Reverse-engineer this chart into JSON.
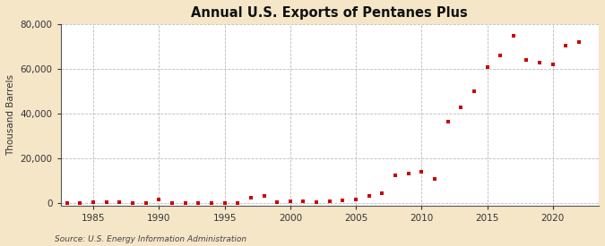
{
  "title": "Annual U.S. Exports of Pentanes Plus",
  "ylabel": "Thousand Barrels",
  "source": "Source: U.S. Energy Information Administration",
  "background_color": "#f5e6c8",
  "plot_bg_color": "#ffffff",
  "marker_color": "#cc0000",
  "marker": "s",
  "marker_size": 3.5,
  "xlim": [
    1982.5,
    2023.5
  ],
  "ylim": [
    -1000,
    80000
  ],
  "yticks": [
    0,
    20000,
    40000,
    60000,
    80000
  ],
  "xticks": [
    1985,
    1990,
    1995,
    2000,
    2005,
    2010,
    2015,
    2020
  ],
  "years": [
    1983,
    1984,
    1985,
    1986,
    1987,
    1988,
    1989,
    1990,
    1991,
    1992,
    1993,
    1994,
    1995,
    1996,
    1997,
    1998,
    1999,
    2000,
    2001,
    2002,
    2003,
    2004,
    2005,
    2006,
    2007,
    2008,
    2009,
    2010,
    2011,
    2012,
    2013,
    2014,
    2015,
    2016,
    2017,
    2018,
    2019,
    2020,
    2021,
    2022
  ],
  "values": [
    200,
    300,
    400,
    500,
    400,
    300,
    200,
    1700,
    200,
    100,
    100,
    200,
    200,
    100,
    2700,
    3300,
    700,
    900,
    1000,
    700,
    800,
    1200,
    1800,
    3500,
    4500,
    12500,
    13500,
    14000,
    11000,
    36500,
    43000,
    50000,
    61000,
    66000,
    75000,
    64000,
    63000,
    62000,
    70500,
    72000
  ]
}
